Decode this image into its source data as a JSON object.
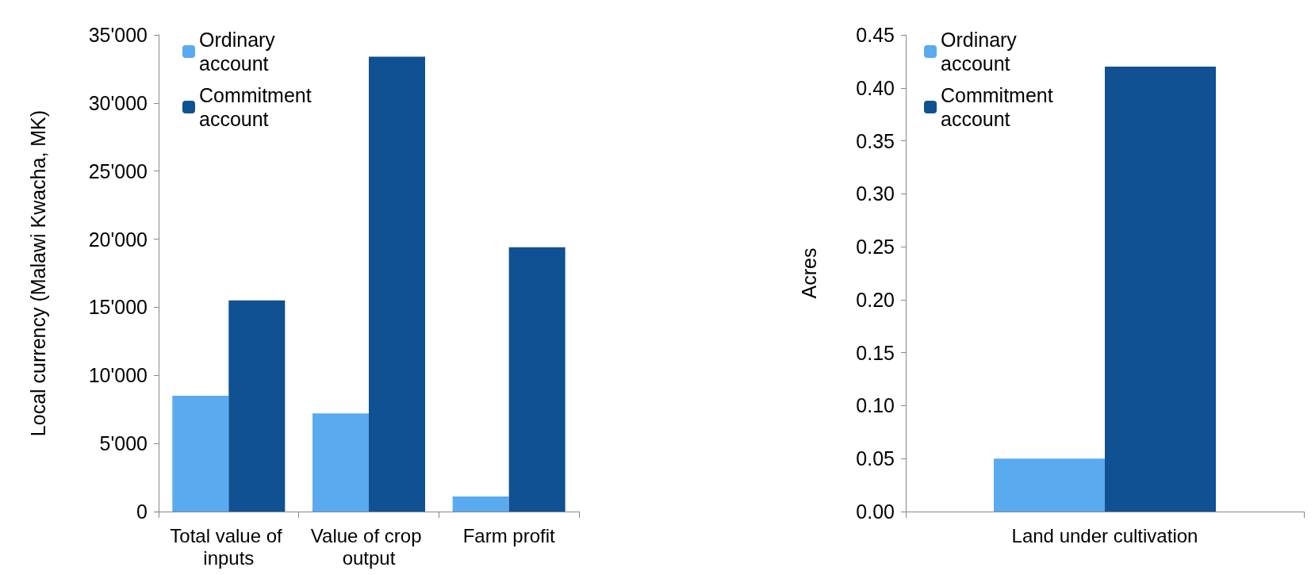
{
  "chart_data": [
    {
      "type": "bar",
      "ylabel": "Local currency (Malawi Kwacha, MK)",
      "categories": [
        "Total value of inputs",
        "Value of crop output",
        "Farm profit"
      ],
      "series": [
        {
          "name": "Ordinary account",
          "color": "#5aaaf0",
          "values": [
            8500,
            7200,
            1100
          ]
        },
        {
          "name": "Commitment account",
          "color": "#0f5192",
          "values": [
            15500,
            33400,
            19400
          ]
        }
      ],
      "ylim": [
        0,
        35000
      ],
      "yticks": [
        0,
        {
          "value": 5000,
          "label": "5'000"
        },
        {
          "value": 10000,
          "label": "10'000"
        },
        {
          "value": 15000,
          "label": "15'000"
        },
        {
          "value": 20000,
          "label": "20'000"
        },
        {
          "value": 25000,
          "label": "25'000"
        },
        {
          "value": 30000,
          "label": "30'000"
        },
        {
          "value": 35000,
          "label": "35'000"
        }
      ],
      "grid": false,
      "legend": "top left"
    },
    {
      "type": "bar",
      "ylabel": "Acres",
      "categories": [
        "Land under cultivation"
      ],
      "series": [
        {
          "name": "Ordinary account",
          "color": "#5aaaf0",
          "values": [
            0.05
          ]
        },
        {
          "name": "Commitment account",
          "color": "#0f5192",
          "values": [
            0.42
          ]
        }
      ],
      "ylim": [
        0,
        0.45
      ],
      "yticks": [
        {
          "value": 0,
          "label": "0.00"
        },
        {
          "value": 0.05,
          "label": "0.05"
        },
        {
          "value": 0.1,
          "label": "0.10"
        },
        {
          "value": 0.15,
          "label": "0.15"
        },
        {
          "value": 0.2,
          "label": "0.20"
        },
        {
          "value": 0.25,
          "label": "0.25"
        },
        {
          "value": 0.3,
          "label": "0.30"
        },
        {
          "value": 0.35,
          "label": "0.35"
        },
        {
          "value": 0.4,
          "label": "0.40"
        },
        {
          "value": 0.45,
          "label": "0.45"
        }
      ],
      "grid": false,
      "legend": "top left"
    }
  ]
}
